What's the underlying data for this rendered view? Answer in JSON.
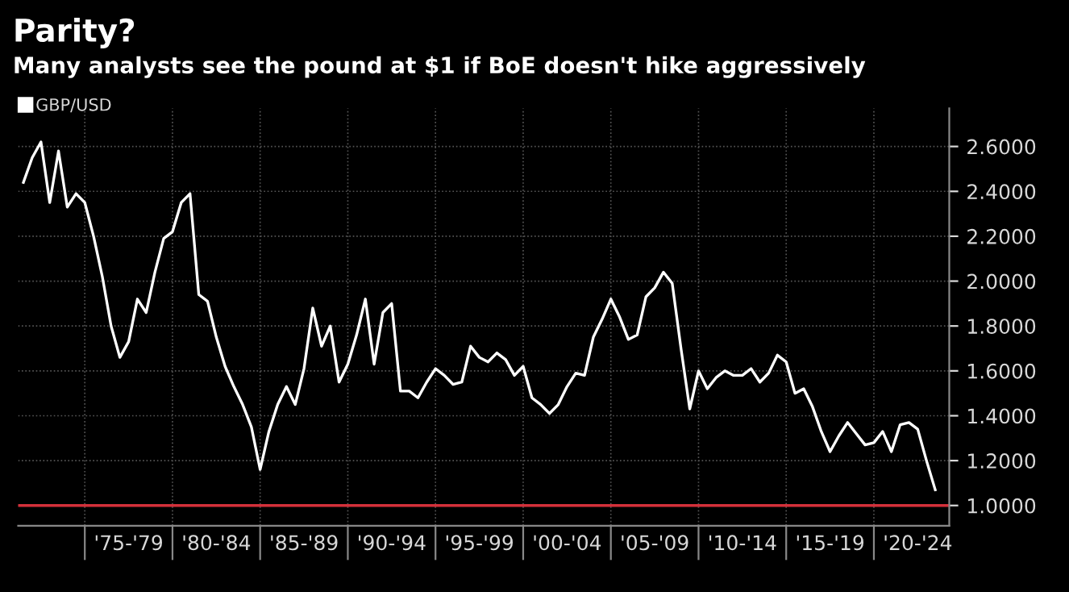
{
  "chart_data": {
    "type": "line",
    "title": "Parity?",
    "subtitle": "Many analysts see the pound at $1 if BoE doesn't hike aggressively",
    "categories": [
      null,
      null,
      null,
      null,
      null,
      null,
      null,
      null,
      null,
      null,
      null,
      null,
      "'75-'79",
      null,
      null,
      null,
      null,
      null,
      null,
      null,
      null,
      null,
      "'80-'84",
      null,
      null,
      null,
      null,
      null,
      null,
      null,
      null,
      null,
      "'85-'89",
      null,
      null,
      null,
      null,
      null,
      null,
      null,
      null,
      null,
      "'90-'94",
      null,
      null,
      null,
      null,
      null,
      null,
      null,
      null,
      null,
      "'95-'99",
      null,
      null,
      null,
      null,
      null,
      null,
      null,
      null,
      null,
      "'00-'04",
      null,
      null,
      null,
      null,
      null,
      null,
      null,
      null,
      null,
      "'05-'09",
      null,
      null,
      null,
      null,
      null,
      null,
      null,
      null,
      null,
      "'10-'14",
      null,
      null,
      null,
      null,
      null,
      null,
      null,
      null,
      null,
      "'15-'19",
      null,
      null,
      null,
      null,
      null,
      null,
      null,
      null,
      null,
      "'20-'24",
      null,
      null
    ],
    "series": [
      {
        "name": "GBP/USD",
        "color": "#ffffff",
        "values": [
          2.44,
          2.55,
          2.62,
          2.35,
          2.58,
          2.33,
          2.39,
          2.35,
          2.2,
          2.02,
          1.8,
          1.66,
          1.73,
          1.92,
          1.86,
          2.04,
          2.19,
          2.22,
          2.35,
          2.39,
          1.94,
          1.91,
          1.75,
          1.62,
          1.53,
          1.45,
          1.35,
          1.16,
          1.33,
          1.45,
          1.53,
          1.45,
          1.61,
          1.88,
          1.71,
          1.8,
          1.55,
          1.63,
          1.76,
          1.92,
          1.63,
          1.86,
          1.9,
          1.51,
          1.51,
          1.48,
          1.55,
          1.61,
          1.58,
          1.54,
          1.55,
          1.71,
          1.66,
          1.64,
          1.68,
          1.65,
          1.58,
          1.62,
          1.48,
          1.45,
          1.41,
          1.45,
          1.53,
          1.59,
          1.58,
          1.75,
          1.83,
          1.92,
          1.84,
          1.74,
          1.76,
          1.93,
          1.97,
          2.04,
          1.99,
          1.7,
          1.43,
          1.6,
          1.52,
          1.57,
          1.6,
          1.58,
          1.58,
          1.61,
          1.55,
          1.59,
          1.67,
          1.64,
          1.5,
          1.52,
          1.44,
          1.33,
          1.24,
          1.31,
          1.37,
          1.32,
          1.27,
          1.28,
          1.33,
          1.24,
          1.36,
          1.37,
          1.34,
          1.2,
          1.07
        ]
      }
    ],
    "ylim": [
      0.91,
      2.77
    ],
    "yticks": [
      {
        "value": 1.0,
        "label": "1.0000"
      },
      {
        "value": 1.2,
        "label": "1.2000"
      },
      {
        "value": 1.4,
        "label": "1.4000"
      },
      {
        "value": 1.6,
        "label": "1.6000"
      },
      {
        "value": 1.8,
        "label": "1.8000"
      },
      {
        "value": 2.0,
        "label": "2.0000"
      },
      {
        "value": 2.2,
        "label": "2.2000"
      },
      {
        "value": 2.4,
        "label": "2.4000"
      },
      {
        "value": 2.6,
        "label": "2.6000"
      }
    ],
    "ref_lines": [
      {
        "axis": "y",
        "value": 1.0,
        "color": "#d3303a"
      }
    ],
    "grid": true,
    "legend": "top left",
    "marker": "none",
    "line_style": "solid"
  }
}
